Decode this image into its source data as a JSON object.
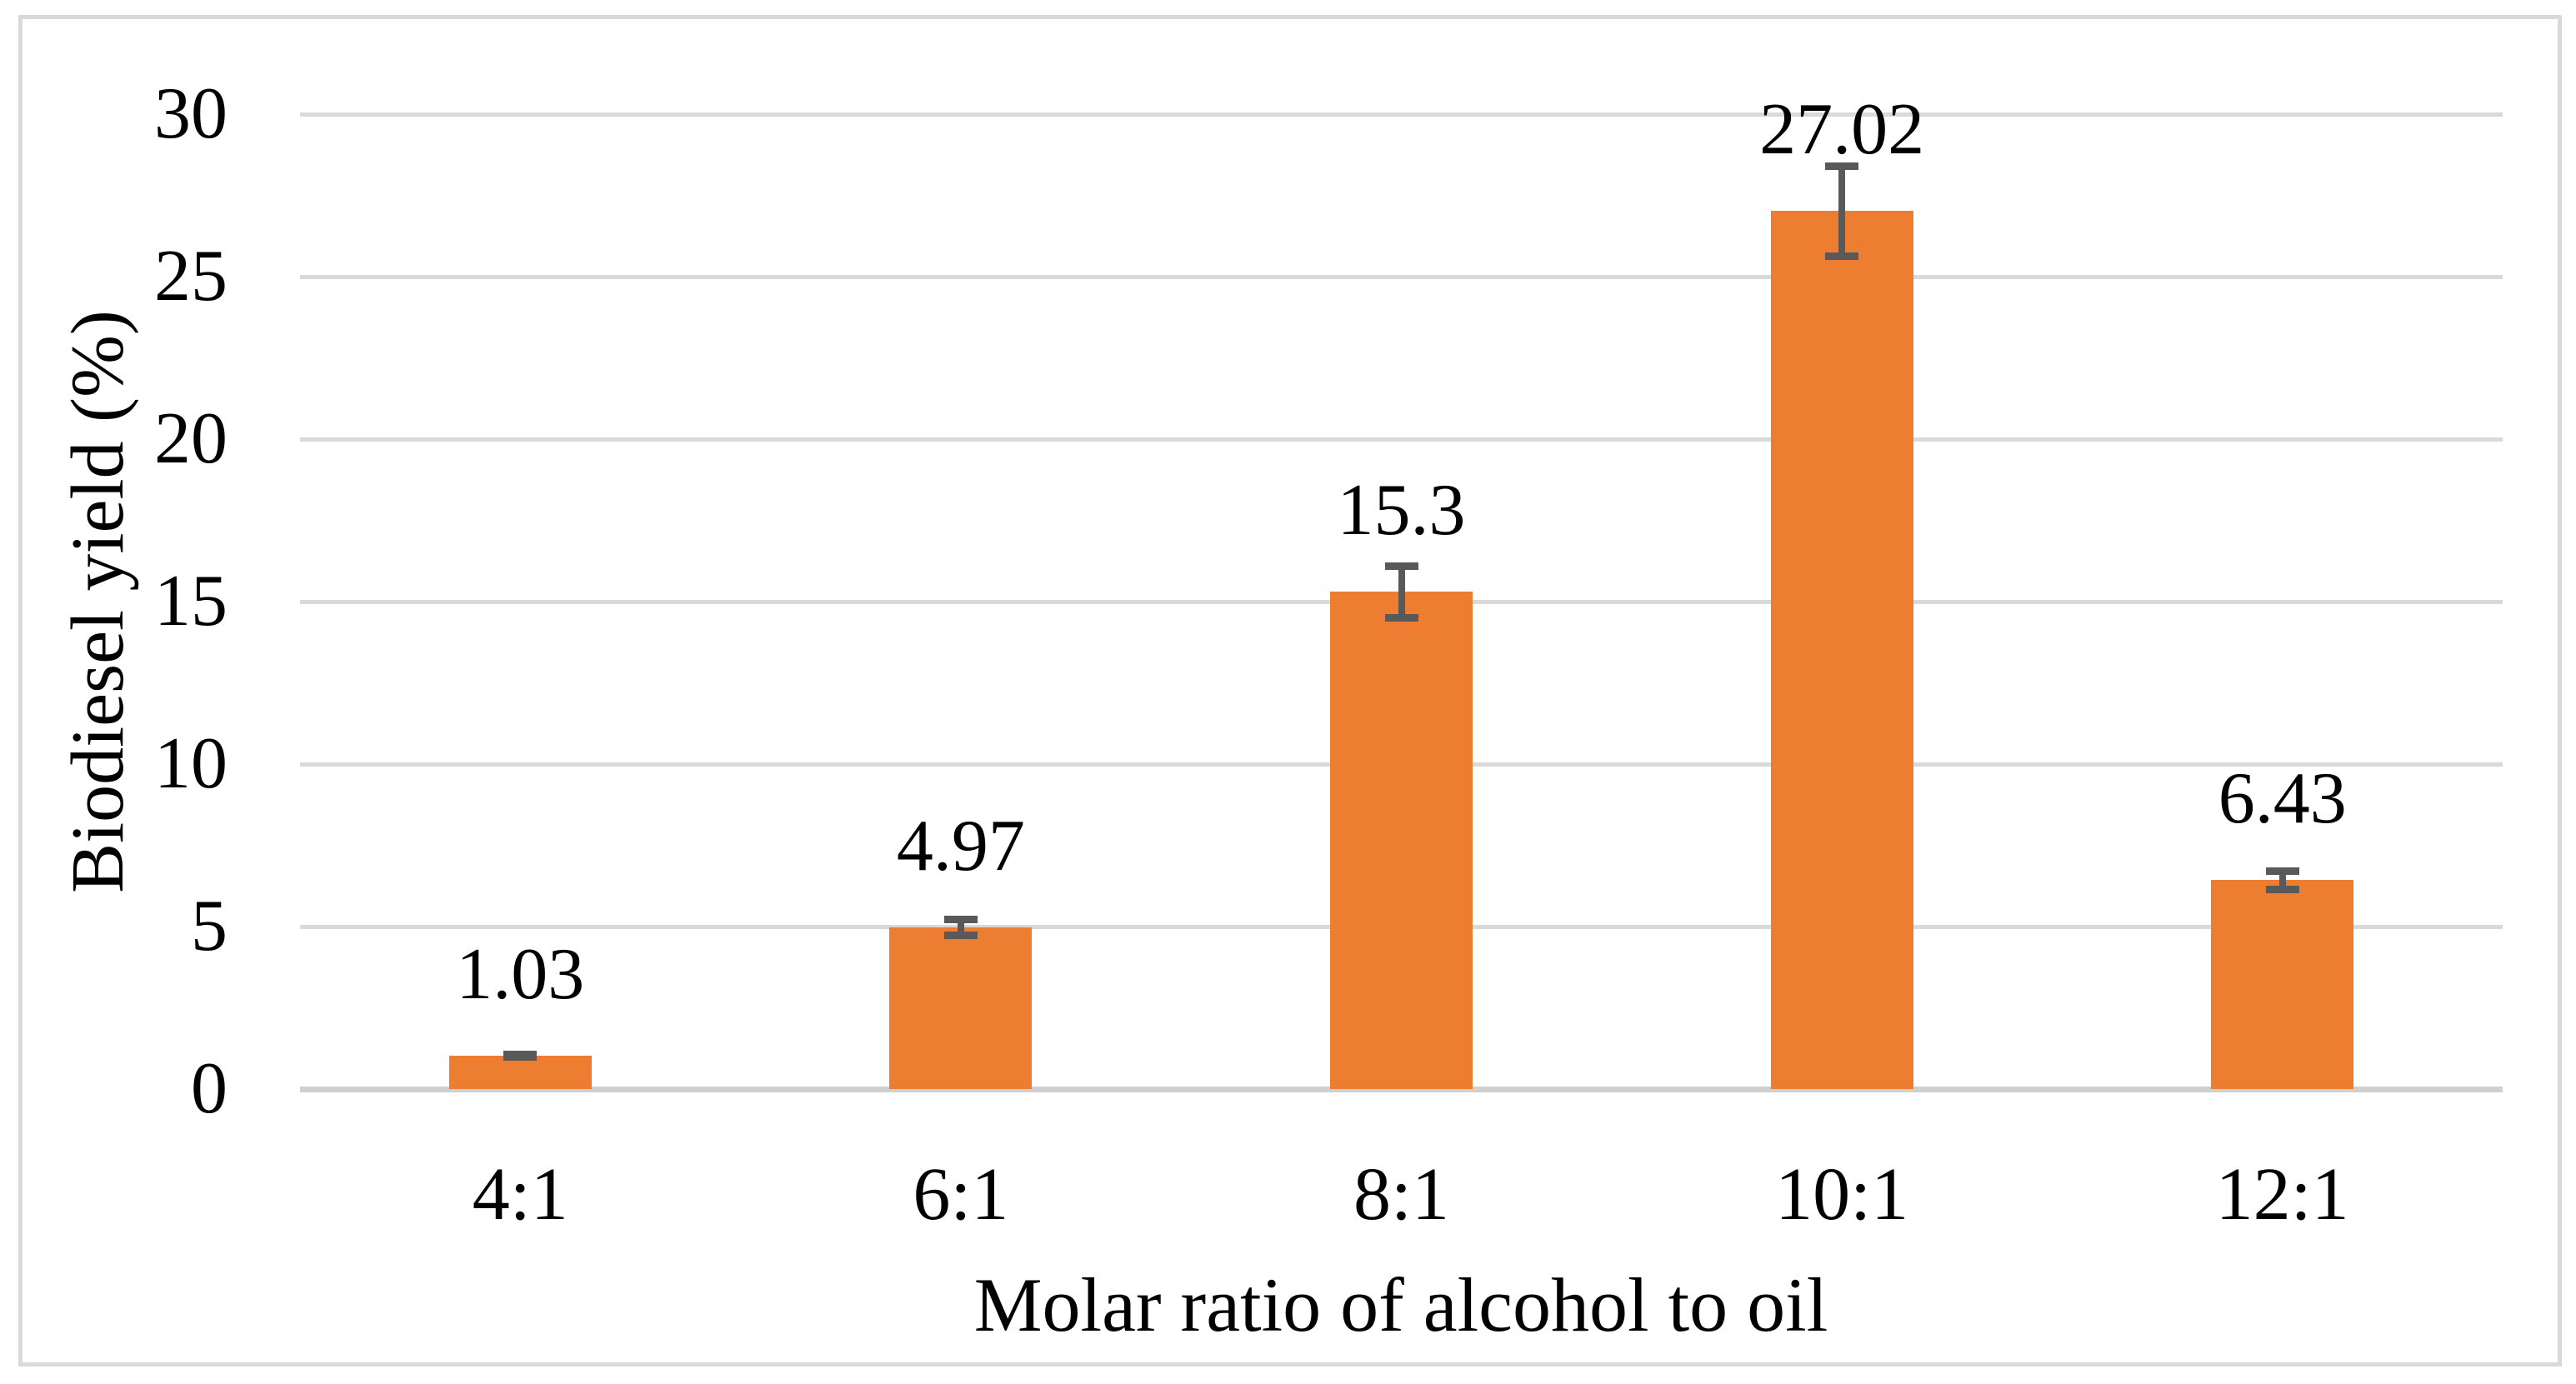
{
  "chart_data": {
    "type": "bar",
    "title": "",
    "categories": [
      "4:1",
      "6:1",
      "8:1",
      "10:1",
      "12:1"
    ],
    "values": [
      1.03,
      4.97,
      15.3,
      27.02,
      6.43
    ],
    "value_labels": [
      "1.03",
      "4.97",
      "15.3",
      "27.02",
      "6.43"
    ],
    "error_bars": [
      0.05,
      0.25,
      0.8,
      1.4,
      0.3
    ],
    "xlabel": "Molar ratio of alcohol to oil",
    "ylabel": "Biodiesel yield (%)",
    "ylim": [
      0,
      30
    ],
    "ytick_interval": 5,
    "yticks": [
      "0",
      "5",
      "10",
      "15",
      "20",
      "25",
      "30"
    ],
    "grid": "horizontal-only",
    "legend": "none",
    "colors": {
      "bar": "#ED7D31",
      "error_bar": "#595959",
      "gridline": "#D9D9D9",
      "axis_line": "#D0D0D0",
      "frame_border": "#D9D9D9",
      "text": "#000000",
      "background": "#FFFFFF"
    }
  }
}
